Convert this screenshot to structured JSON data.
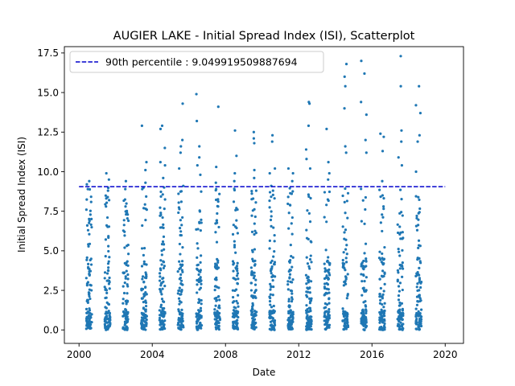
{
  "chart_data": {
    "type": "scatter",
    "title": "AUGIER LAKE - Initial Spread Index (ISI), Scatterplot",
    "xlabel": "Date",
    "ylabel": "Initial Spread Index (ISI)",
    "xlim": [
      1999.2,
      2021.0
    ],
    "ylim": [
      -0.85,
      17.9
    ],
    "xticks": [
      2000,
      2004,
      2008,
      2012,
      2016,
      2020
    ],
    "xtick_labels": [
      "2000",
      "2004",
      "2008",
      "2012",
      "2016",
      "2020"
    ],
    "yticks": [
      0.0,
      2.5,
      5.0,
      7.5,
      10.0,
      12.5,
      15.0,
      17.5
    ],
    "ytick_labels": [
      "0.0",
      "2.5",
      "5.0",
      "7.5",
      "10.0",
      "12.5",
      "15.0",
      "17.5"
    ],
    "grid": false,
    "legend_position": "top-left",
    "point_color": "#1f77b4",
    "reference_line": {
      "label": "90th percentile : 9.049919509887694",
      "value": 9.049919509887694,
      "color": "#0000cc",
      "style": "dashed",
      "x_range": [
        2000.0,
        2020.0
      ]
    },
    "seasons": [
      {
        "start": 2000.4,
        "end": 2000.7,
        "max_points": [
          9.4,
          9.2,
          8.9,
          7.6,
          6.6,
          6.3
        ]
      },
      {
        "start": 2001.4,
        "end": 2001.7,
        "max_points": [
          9.9,
          9.5,
          8.8,
          8.2,
          7.8,
          7.1
        ]
      },
      {
        "start": 2002.4,
        "end": 2002.7,
        "max_points": [
          9.4,
          8.9,
          7.8,
          7.4,
          6.9,
          6.2
        ]
      },
      {
        "start": 2003.4,
        "end": 2003.7,
        "max_points": [
          12.9,
          10.6,
          10.1,
          9.3,
          8.9,
          7.6
        ]
      },
      {
        "start": 2004.4,
        "end": 2004.7,
        "max_points": [
          12.9,
          12.7,
          11.5,
          10.6,
          10.4,
          9.6
        ]
      },
      {
        "start": 2005.4,
        "end": 2005.7,
        "max_points": [
          14.3,
          12.0,
          11.6,
          11.2,
          10.2,
          9.1
        ]
      },
      {
        "start": 2006.4,
        "end": 2006.7,
        "max_points": [
          14.9,
          13.2,
          11.6,
          10.9,
          10.4,
          9.8
        ]
      },
      {
        "start": 2007.4,
        "end": 2007.7,
        "max_points": [
          14.1,
          10.3,
          9.3,
          8.9,
          7.8,
          6.9
        ]
      },
      {
        "start": 2008.4,
        "end": 2008.7,
        "max_points": [
          12.6,
          11.0,
          9.9,
          9.4,
          8.1,
          7.7
        ]
      },
      {
        "start": 2009.4,
        "end": 2009.7,
        "max_points": [
          12.5,
          12.1,
          11.8,
          10.1,
          9.6,
          8.8
        ]
      },
      {
        "start": 2010.4,
        "end": 2010.7,
        "max_points": [
          12.3,
          11.9,
          10.2,
          9.9,
          9.1,
          8.7
        ]
      },
      {
        "start": 2011.4,
        "end": 2011.7,
        "max_points": [
          10.2,
          9.9,
          9.4,
          8.6,
          7.9,
          7.1
        ]
      },
      {
        "start": 2012.4,
        "end": 2012.7,
        "max_points": [
          14.4,
          14.3,
          12.9,
          11.4,
          10.8,
          10.2
        ]
      },
      {
        "start": 2013.4,
        "end": 2013.7,
        "max_points": [
          12.7,
          10.6,
          9.9,
          9.5,
          8.7,
          7.9
        ]
      },
      {
        "start": 2014.4,
        "end": 2014.7,
        "max_points": [
          16.8,
          16.0,
          15.4,
          14.0,
          11.6,
          11.2
        ]
      },
      {
        "start": 2015.4,
        "end": 2015.7,
        "max_points": [
          17.0,
          16.2,
          14.4,
          13.6,
          12.0,
          11.2
        ]
      },
      {
        "start": 2016.4,
        "end": 2016.7,
        "max_points": [
          12.4,
          12.2,
          11.3,
          9.4,
          8.5,
          7.8
        ]
      },
      {
        "start": 2017.4,
        "end": 2017.7,
        "max_points": [
          17.3,
          15.4,
          12.6,
          11.9,
          10.9,
          10.4
        ]
      },
      {
        "start": 2018.4,
        "end": 2018.7,
        "max_points": [
          15.4,
          14.2,
          13.7,
          12.3,
          11.9,
          10.0
        ]
      }
    ],
    "bulk_range": [
      0.0,
      9.0
    ],
    "bulk_points_per_season": 95
  }
}
